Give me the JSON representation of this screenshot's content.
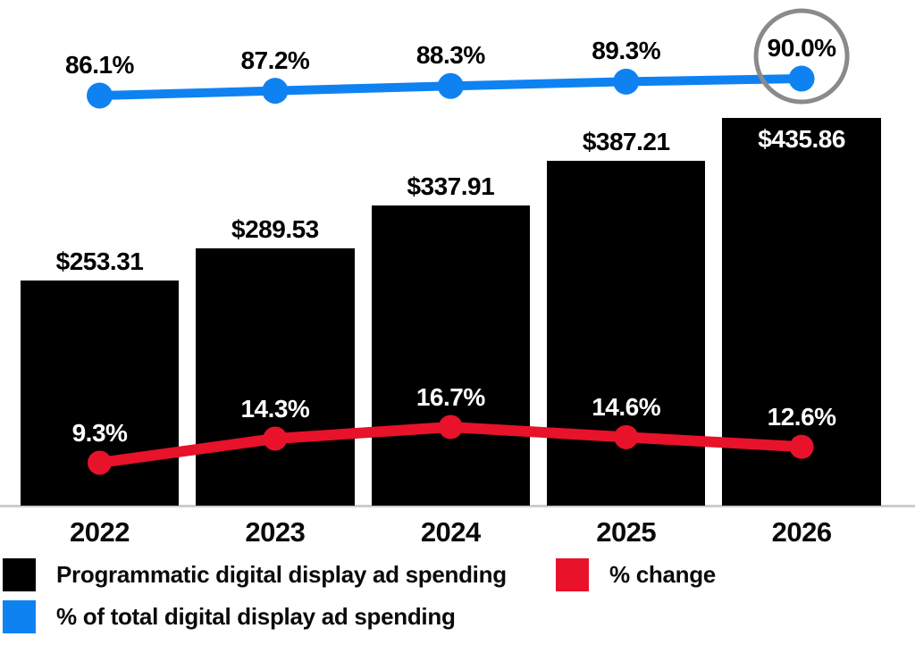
{
  "chart_data": {
    "type": "bar",
    "title": "",
    "categories": [
      "2022",
      "2023",
      "2024",
      "2025",
      "2026"
    ],
    "series": [
      {
        "name": "Programmatic digital display ad spending",
        "type": "bar",
        "color": "#000000",
        "values": [
          253.31,
          289.53,
          337.91,
          387.21,
          435.86
        ],
        "labels": [
          "$253.31",
          "$289.53",
          "$337.91",
          "$387.21",
          "$435.86"
        ],
        "label_color_outside": "#000000",
        "label_color_inside": "#ffffff",
        "last_label_inside_bar": true
      },
      {
        "name": "% change",
        "type": "line",
        "color": "#e8122b",
        "values": [
          9.3,
          14.3,
          16.7,
          14.6,
          12.6
        ],
        "labels": [
          "9.3%",
          "14.3%",
          "16.7%",
          "14.6%",
          "12.6%"
        ],
        "label_color": "#ffffff"
      },
      {
        "name": "% of total digital display ad spending",
        "type": "line",
        "color": "#0f82f2",
        "values": [
          86.1,
          87.2,
          88.3,
          89.3,
          90.0
        ],
        "labels": [
          "86.1%",
          "87.2%",
          "88.3%",
          "89.3%",
          "90.0%"
        ],
        "label_color": "#000000",
        "annotation": {
          "type": "circle",
          "point_index": 4,
          "color": "#8a8a8a"
        }
      }
    ],
    "xlabel": "",
    "ylabel": "",
    "grid": false,
    "legend_position": "bottom",
    "axis_line_color": "#cccccc"
  }
}
